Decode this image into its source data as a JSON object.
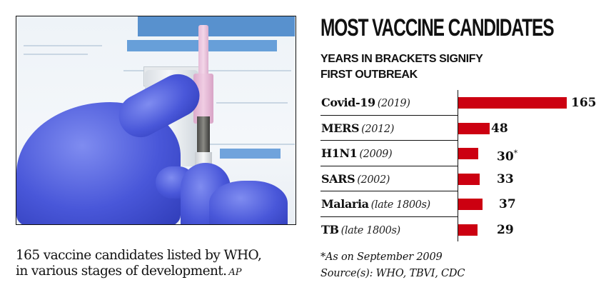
{
  "photo": {
    "alt": "Gloved hands holding a vaccine vial and syringe"
  },
  "caption": {
    "text": "165 vaccine candidates listed by WHO, in various stages of development.",
    "line1": "165 vaccine candidates listed by WHO,",
    "line2": "in various stages of development.",
    "credit": "AP"
  },
  "chart": {
    "title": "MOST VACCINE CANDIDATES",
    "subtitle_line1": "YEARS IN BRACKETS SIGNIFY",
    "subtitle_line2": "FIRST OUTBREAK",
    "bar_color": "#cc0011",
    "rows": [
      {
        "name": "Covid-19",
        "year": "(2019)",
        "value": "165",
        "note": ""
      },
      {
        "name": "MERS",
        "year": "(2012)",
        "value": "48",
        "note": ""
      },
      {
        "name": "H1N1",
        "year": "(2009)",
        "value": "30",
        "note": "*"
      },
      {
        "name": "SARS",
        "year": "(2002)",
        "value": "33",
        "note": ""
      },
      {
        "name": "Malaria",
        "year": "(late 1800s)",
        "value": "37",
        "note": ""
      },
      {
        "name": "TB",
        "year": "(late 1800s)",
        "value": "29",
        "note": ""
      }
    ],
    "footnote": "*As on September 2009",
    "source": "Source(s): WHO, TBVI, CDC"
  },
  "chart_data": {
    "type": "bar",
    "orientation": "horizontal",
    "title": "MOST VACCINE CANDIDATES",
    "subtitle": "YEARS IN BRACKETS SIGNIFY FIRST OUTBREAK",
    "categories": [
      "Covid-19 (2019)",
      "MERS (2012)",
      "H1N1 (2009)",
      "SARS (2002)",
      "Malaria (late 1800s)",
      "TB (late 1800s)"
    ],
    "values": [
      165,
      48,
      30,
      33,
      37,
      29
    ],
    "data_labels": [
      "165",
      "48",
      "30*",
      "33",
      "37",
      "29"
    ],
    "annotations": [
      "*As on September 2009",
      "Source(s): WHO, TBVI, CDC"
    ],
    "xlabel": "",
    "ylabel": "",
    "grid": false,
    "legend": null,
    "bar_color": "#cc0011"
  }
}
